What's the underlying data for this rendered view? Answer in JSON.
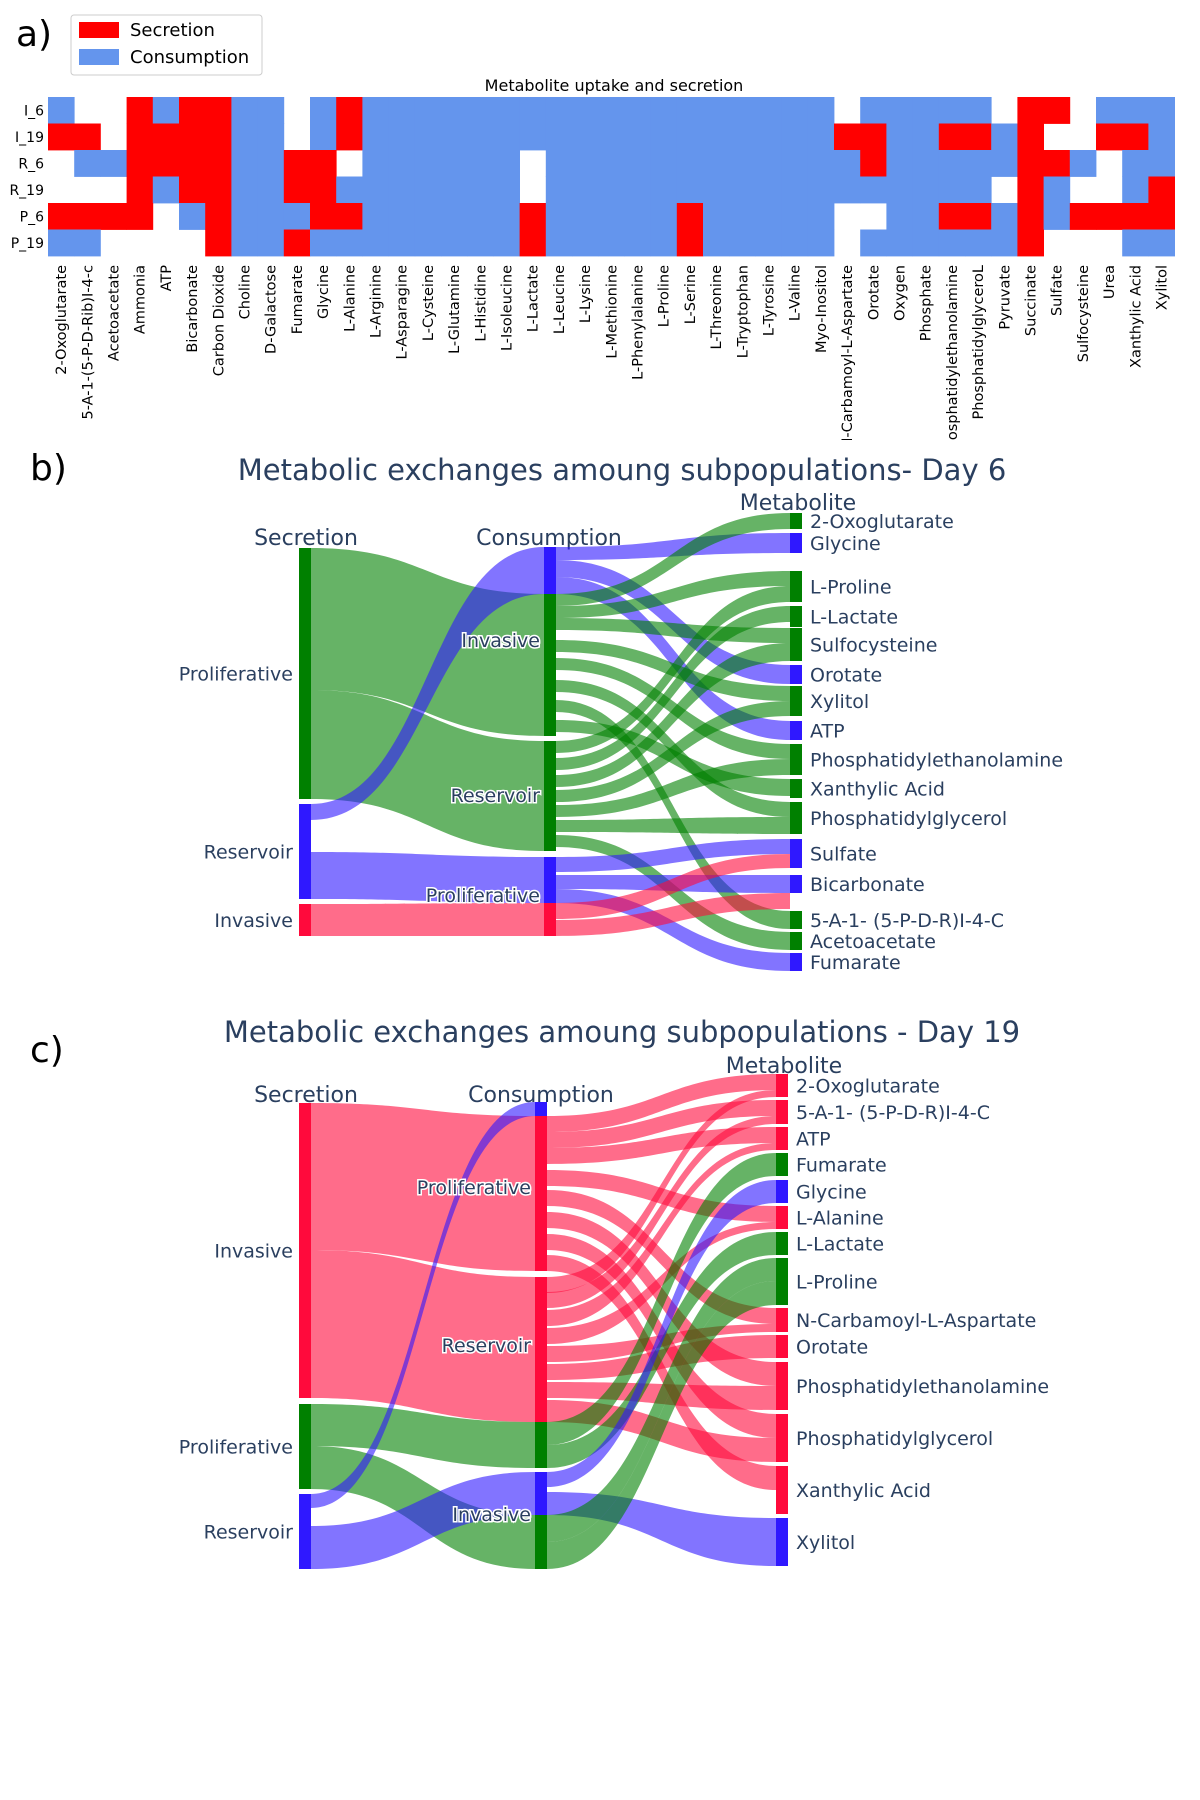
{
  "panels": {
    "a": "a)",
    "b": "b)",
    "c": "c)"
  },
  "colors": {
    "secretion": "#ff0000",
    "consumption": "#6495ed",
    "green": "#008000",
    "blue": "#2f18ff",
    "red": "#ff0a3c",
    "text": "#2a3f5f"
  },
  "chart_data": [
    {
      "type": "heatmap",
      "title": "Metabolite uptake and secretion",
      "legend": {
        "placement": "top-left",
        "entries": [
          "Secretion",
          "Consumption"
        ]
      },
      "rows": [
        "I_6",
        "I_19",
        "R_6",
        "R_19",
        "P_6",
        "P_19"
      ],
      "columns": [
        "2-Oxoglutarate",
        "5-A-1-(5-P-D-Rib)I-4-c",
        "Acetoacetate",
        "Ammonia",
        "ATP",
        "Bicarbonate",
        "Carbon Dioxide",
        "Choline",
        "D-Galactose",
        "Fumarate",
        "Glycine",
        "L-Alanine",
        "L-Arginine",
        "L-Asparagine",
        "L-Cysteine",
        "L-Glutamine",
        "L-Histidine",
        "L-Isoleucine",
        "L-Lactate",
        "L-Leucine",
        "L-Lysine",
        "L-Methionine",
        "L-Phenylalanine",
        "L-Proline",
        "L-Serine",
        "L-Threonine",
        "L-Tryptophan",
        "L-Tyrosine",
        "L-Valine",
        "Myo-Inositol",
        "N-Carbamoyl-L-Aspartate",
        "Orotate",
        "Oxygen",
        "Phosphate",
        "Phosphatidylethanolamine",
        "PhosphatidylglyceroL",
        "Pyruvate",
        "Succinate",
        "Sulfate",
        "Sulfocysteine",
        "Urea",
        "Xanthylic Acid",
        "Xylitol"
      ],
      "value_legend": {
        "S": "Secretion",
        "C": "Consumption",
        "N": "none"
      },
      "cells": [
        "CNNSCSSCCNCSCCCCCCCCCCCCCCCCCCNCCCCCNSSNCCC",
        "SSNSSSSCCNCSCCCCCCCCCCCCCCCCCCSSCCSSCSNNSSC",
        "NCCSSSSCCSSNCCCCCCNCCCCCCCCCCCCSCCCCCSSCNCC",
        "NNNSCSSCCSSCCCCCCCNCCCCCCCCCCCCCCCCCNSCNNCS",
        "SSSSNCSCCCSSCCCCCCSCCCCCSCCCCCNNCCSSCSCSSSS",
        "CCNNNNSCCSCCCCCCCCSCCCCCSCCCCCNCCCCCCSNNNCC"
      ]
    },
    {
      "type": "sankey",
      "title": "Metabolic exchanges amoung subpopulations- Day 6",
      "column_headers": [
        "Secretion",
        "Consumption",
        "Metabolite"
      ],
      "secretion_nodes": [
        "Proliferative",
        "Reservoir",
        "Invasive"
      ],
      "consumption_nodes": [
        "Invasive",
        "Reservoir",
        "Proliferative"
      ],
      "metabolites": [
        "2-Oxoglutarate",
        "Glycine",
        "L-Proline",
        "L-Lactate",
        "Sulfocysteine",
        "Orotate",
        "Xylitol",
        "ATP",
        "Phosphatidylethanolamine",
        "Xanthylic Acid",
        "Phosphatidylglycerol",
        "Sulfate",
        "Bicarbonate",
        "5-A-1- (5-P-D-R)I-4-C",
        "Acetoacetate",
        "Fumarate"
      ],
      "flows": [
        {
          "source": "Proliferative",
          "target": "Invasive",
          "value": 15
        },
        {
          "source": "Proliferative",
          "target": "Reservoir",
          "value": 11
        },
        {
          "source": "Reservoir",
          "target": "Invasive",
          "value": 3
        },
        {
          "source": "Reservoir",
          "target": "Proliferative",
          "value": 6
        },
        {
          "source": "Invasive",
          "target": "Proliferative",
          "value": 3
        }
      ]
    },
    {
      "type": "sankey",
      "title": "Metabolic exchanges amoung subpopulations - Day 19",
      "column_headers": [
        "Secretion",
        "Consumption",
        "Metabolite"
      ],
      "secretion_nodes": [
        "Invasive",
        "Proliferative",
        "Reservoir"
      ],
      "consumption_nodes": [
        "Proliferative",
        "Reservoir",
        "Invasive"
      ],
      "metabolites": [
        "2-Oxoglutarate",
        "5-A-1- (5-P-D-R)I-4-C",
        "ATP",
        "Fumarate",
        "Glycine",
        "L-Alanine",
        "L-Lactate",
        "L-Proline",
        "N-Carbamoyl-L-Aspartate",
        "Orotate",
        "Phosphatidylethanolamine",
        "Phosphatidylglycerol",
        "Xanthylic Acid",
        "Xylitol"
      ],
      "flows": [
        {
          "source": "Invasive",
          "target": "Proliferative",
          "value": 12
        },
        {
          "source": "Invasive",
          "target": "Reservoir",
          "value": 12
        },
        {
          "source": "Proliferative",
          "target": "Reservoir",
          "value": 4
        },
        {
          "source": "Proliferative",
          "target": "Invasive",
          "value": 4
        },
        {
          "source": "Reservoir",
          "target": "Proliferative",
          "value": 2
        },
        {
          "source": "Reservoir",
          "target": "Invasive",
          "value": 4
        }
      ]
    }
  ]
}
